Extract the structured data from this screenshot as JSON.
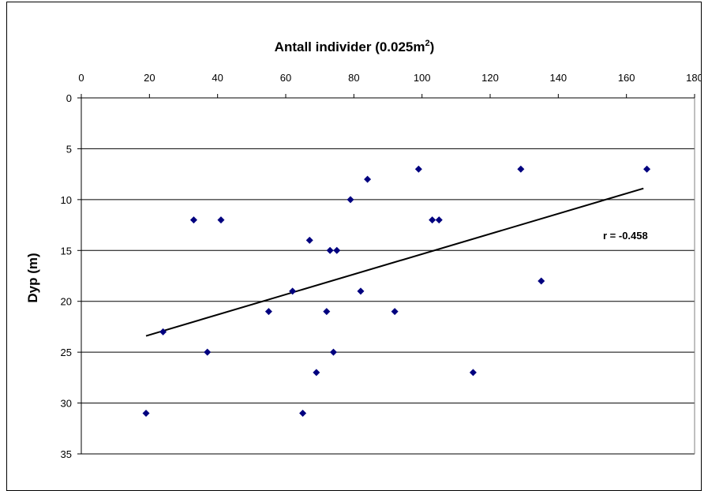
{
  "chart_data": {
    "type": "scatter",
    "title": "Antall individer (0.025m",
    "title_superscript": "2",
    "title_suffix": ")",
    "xlabel": "Antall individer (0.025m2)",
    "ylabel": "Dyp (m)",
    "xlim": [
      0,
      180
    ],
    "ylim": [
      0,
      35
    ],
    "y_inverted": true,
    "x_axis_position": "top",
    "x_ticks": [
      0,
      20,
      40,
      60,
      80,
      100,
      120,
      140,
      160,
      180
    ],
    "y_ticks": [
      0,
      5,
      10,
      15,
      20,
      25,
      30,
      35
    ],
    "grid": "horizontal",
    "marker": "diamond",
    "marker_color": "#00007f",
    "points": [
      {
        "x": 99,
        "y": 7
      },
      {
        "x": 129,
        "y": 7
      },
      {
        "x": 166,
        "y": 7
      },
      {
        "x": 84,
        "y": 8
      },
      {
        "x": 79,
        "y": 10
      },
      {
        "x": 33,
        "y": 12
      },
      {
        "x": 41,
        "y": 12
      },
      {
        "x": 103,
        "y": 12
      },
      {
        "x": 105,
        "y": 12
      },
      {
        "x": 67,
        "y": 14
      },
      {
        "x": 73,
        "y": 15
      },
      {
        "x": 75,
        "y": 15
      },
      {
        "x": 135,
        "y": 18
      },
      {
        "x": 62,
        "y": 19
      },
      {
        "x": 82,
        "y": 19
      },
      {
        "x": 55,
        "y": 21
      },
      {
        "x": 72,
        "y": 21
      },
      {
        "x": 92,
        "y": 21
      },
      {
        "x": 24,
        "y": 23
      },
      {
        "x": 37,
        "y": 25
      },
      {
        "x": 74,
        "y": 25
      },
      {
        "x": 69,
        "y": 27
      },
      {
        "x": 115,
        "y": 27
      },
      {
        "x": 19,
        "y": 31
      },
      {
        "x": 65,
        "y": 31
      }
    ],
    "trendline": {
      "x1": 19,
      "y1": 23.4,
      "x2": 165,
      "y2": 8.9,
      "color": "#000000"
    },
    "annotation": "r = -0.458"
  }
}
